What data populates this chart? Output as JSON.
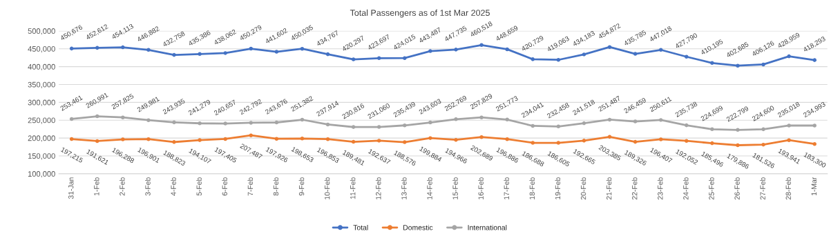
{
  "chart_data": {
    "type": "line",
    "title": "Total Passengers as of 1st Mar 2025",
    "categories": [
      "31-Jan",
      "1-Feb",
      "2-Feb",
      "3-Feb",
      "4-Feb",
      "5-Feb",
      "6-Feb",
      "7-Feb",
      "8-Feb",
      "9-Feb",
      "10-Feb",
      "11-Feb",
      "12-Feb",
      "13-Feb",
      "14-Feb",
      "15-Feb",
      "16-Feb",
      "17-Feb",
      "18-Feb",
      "19-Feb",
      "20-Feb",
      "21-Feb",
      "22-Feb",
      "23-Feb",
      "24-Feb",
      "25-Feb",
      "26-Feb",
      "27-Feb",
      "28-Feb",
      "1-Mar"
    ],
    "series": [
      {
        "name": "Total",
        "color": "#4472c4",
        "values": [
          450676,
          452612,
          454113,
          446882,
          432758,
          435386,
          438062,
          450279,
          441602,
          450035,
          434767,
          420297,
          423697,
          424015,
          443487,
          447735,
          460518,
          448659,
          420729,
          419063,
          434183,
          454872,
          435785,
          447018,
          427790,
          410195,
          402685,
          406126,
          428959,
          418293
        ],
        "value_labels": [
          "450,676",
          "452,612",
          "454,113",
          "446,882",
          "432,758",
          "435,386",
          "438,062",
          "450,279",
          "441,602",
          "450,035",
          "434,767",
          "420,297",
          "423,697",
          "424,015",
          "443,487",
          "447,735",
          "460,518",
          "448,659",
          "420,729",
          "419,063",
          "434,183",
          "454,872",
          "435,785",
          "447,018",
          "427,790",
          "410,195",
          "402,685",
          "406,126",
          "428,959",
          "418,293"
        ]
      },
      {
        "name": "Domestic",
        "color": "#ed7d31",
        "values": [
          197215,
          191621,
          196288,
          196901,
          188823,
          194107,
          197405,
          207487,
          197926,
          198653,
          196853,
          189481,
          192637,
          188576,
          199884,
          194966,
          202689,
          196886,
          186688,
          186605,
          192665,
          203385,
          189326,
          196407,
          192052,
          185496,
          179886,
          181526,
          193941,
          183300
        ],
        "value_labels": [
          "197,215",
          "191,621",
          "196,288",
          "196,901",
          "188,823",
          "194,107",
          "197,405",
          "207,487",
          "197,926",
          "198,653",
          "196,853",
          "189,481",
          "192,637",
          "188,576",
          "199,884",
          "194,966",
          "202,689",
          "196,886",
          "186,688",
          "186,605",
          "192,665",
          "203,385",
          "189,326",
          "196,407",
          "192,052",
          "185,496",
          "179,886",
          "181,526",
          "193,941",
          "183,300"
        ]
      },
      {
        "name": "International",
        "color": "#a5a5a5",
        "values": [
          253461,
          260991,
          257825,
          249981,
          243935,
          241279,
          240657,
          242792,
          243676,
          251382,
          237914,
          230816,
          231060,
          235439,
          243603,
          252769,
          257829,
          251773,
          234041,
          232458,
          241518,
          251487,
          246459,
          250611,
          235738,
          224699,
          222799,
          224600,
          235018,
          234993
        ],
        "value_labels": [
          "253,461",
          "260,991",
          "257,825",
          "249,981",
          "243,935",
          "241,279",
          "240,657",
          "242,792",
          "243,676",
          "251,382",
          "237,914",
          "230,816",
          "231,060",
          "235,439",
          "243,603",
          "252,769",
          "257,829",
          "251,773",
          "234,041",
          "232,458",
          "241,518",
          "251,487",
          "246,459",
          "250,611",
          "235,738",
          "224,699",
          "222,799",
          "224,600",
          "235,018",
          "234,993"
        ]
      }
    ],
    "ylim": [
      100000,
      500000
    ],
    "yticks": [
      {
        "value": 100000,
        "label": "100,000"
      },
      {
        "value": 150000,
        "label": "150,000"
      },
      {
        "value": 200000,
        "label": "200,000"
      },
      {
        "value": 250000,
        "label": "250,000"
      },
      {
        "value": 300000,
        "label": "300,000"
      },
      {
        "value": 350000,
        "label": "350,000"
      },
      {
        "value": 400000,
        "label": "400,000"
      },
      {
        "value": 450000,
        "label": "450,000"
      },
      {
        "value": 500000,
        "label": "500,000"
      }
    ],
    "grid": "y",
    "legend": "bottom",
    "marker": "circle",
    "line_style": "solid"
  }
}
